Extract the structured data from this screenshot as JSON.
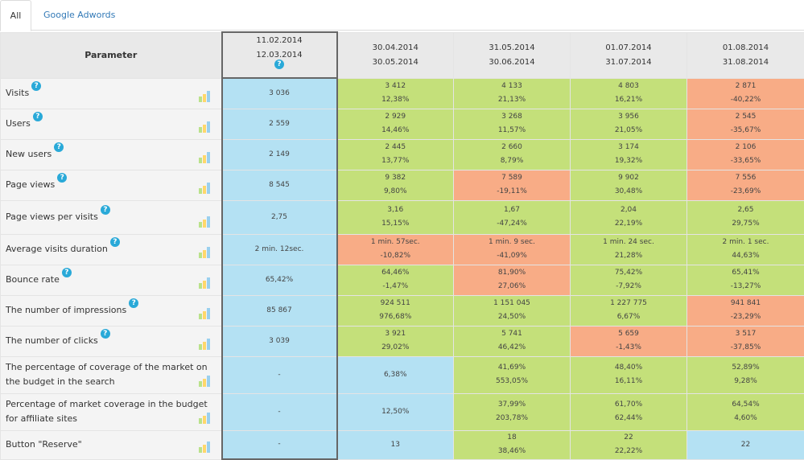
{
  "tabs": [
    "All",
    "Google Adwords"
  ],
  "header": {
    "parameter": "Parameter",
    "base": [
      "11.02.2014",
      "12.03.2014"
    ],
    "periods": [
      [
        "30.04.2014",
        "30.05.2014"
      ],
      [
        "31.05.2014",
        "30.06.2014"
      ],
      [
        "01.07.2014",
        "31.07.2014"
      ],
      [
        "01.08.2014",
        "31.08.2014"
      ]
    ],
    "help": "?"
  },
  "rows": [
    {
      "label": "Visits",
      "base": "3 036",
      "cells": [
        [
          "3 412",
          "12,38%",
          "g"
        ],
        [
          "4 133",
          "21,13%",
          "g"
        ],
        [
          "4 803",
          "16,21%",
          "g"
        ],
        [
          "2 871",
          "-40,22%",
          "r"
        ]
      ]
    },
    {
      "label": "Users",
      "base": "2 559",
      "cells": [
        [
          "2 929",
          "14,46%",
          "g"
        ],
        [
          "3 268",
          "11,57%",
          "g"
        ],
        [
          "3 956",
          "21,05%",
          "g"
        ],
        [
          "2 545",
          "-35,67%",
          "r"
        ]
      ]
    },
    {
      "label": "New users",
      "base": "2 149",
      "cells": [
        [
          "2 445",
          "13,77%",
          "g"
        ],
        [
          "2 660",
          "8,79%",
          "g"
        ],
        [
          "3 174",
          "19,32%",
          "g"
        ],
        [
          "2 106",
          "-33,65%",
          "r"
        ]
      ]
    },
    {
      "label": "Page views",
      "base": "8 545",
      "cells": [
        [
          "9 382",
          "9,80%",
          "g"
        ],
        [
          "7 589",
          "-19,11%",
          "r"
        ],
        [
          "9 902",
          "30,48%",
          "g"
        ],
        [
          "7 556",
          "-23,69%",
          "r"
        ]
      ]
    },
    {
      "label": "Page views per visits",
      "base": "2,75",
      "cells": [
        [
          "3,16",
          "15,15%",
          "g"
        ],
        [
          "1,67",
          "-47,24%",
          "g"
        ],
        [
          "2,04",
          "22,19%",
          "g"
        ],
        [
          "2,65",
          "29,75%",
          "g"
        ]
      ]
    },
    {
      "label": "Average visits duration",
      "base": "2 min. 12sec.",
      "cells": [
        [
          "1 min. 57sec.",
          "-10,82%",
          "r"
        ],
        [
          "1 min. 9 sec.",
          "-41,09%",
          "r"
        ],
        [
          "1 min. 24 sec.",
          "21,28%",
          "g"
        ],
        [
          "2 min. 1 sec.",
          "44,63%",
          "g"
        ]
      ]
    },
    {
      "label": "Bounce rate",
      "base": "65,42%",
      "cells": [
        [
          "64,46%",
          "-1,47%",
          "g"
        ],
        [
          "81,90%",
          "27,06%",
          "r"
        ],
        [
          "75,42%",
          "-7,92%",
          "g"
        ],
        [
          "65,41%",
          "-13,27%",
          "g"
        ]
      ]
    },
    {
      "label": "The number of impressions",
      "base": "85 867",
      "cells": [
        [
          "924 511",
          "976,68%",
          "g"
        ],
        [
          "1 151 045",
          "24,50%",
          "g"
        ],
        [
          "1 227 775",
          "6,67%",
          "g"
        ],
        [
          "941 841",
          "-23,29%",
          "r"
        ]
      ]
    },
    {
      "label": "The number of clicks",
      "base": "3 039",
      "cells": [
        [
          "3 921",
          "29,02%",
          "g"
        ],
        [
          "5 741",
          "46,42%",
          "g"
        ],
        [
          "5 659",
          "-1,43%",
          "r"
        ],
        [
          "3 517",
          "-37,85%",
          "r"
        ]
      ]
    },
    {
      "label": "The percentage of coverage of the market on the budget in the search",
      "base": "-",
      "cells": [
        [
          "6,38%",
          "",
          "b"
        ],
        [
          "41,69%",
          "553,05%",
          "g"
        ],
        [
          "48,40%",
          "16,11%",
          "g"
        ],
        [
          "52,89%",
          "9,28%",
          "g"
        ]
      ]
    },
    {
      "label": "Percentage of market coverage in the budget for affiliate sites",
      "base": "-",
      "cells": [
        [
          "12,50%",
          "",
          "b"
        ],
        [
          "37,99%",
          "203,78%",
          "g"
        ],
        [
          "61,70%",
          "62,44%",
          "g"
        ],
        [
          "64,54%",
          "4,60%",
          "g"
        ]
      ]
    },
    {
      "label": "Button \"Reserve\"",
      "base": "-",
      "cells": [
        [
          "13",
          "",
          "b"
        ],
        [
          "18",
          "38,46%",
          "g"
        ],
        [
          "22",
          "22,22%",
          "g"
        ],
        [
          "22",
          "",
          "b"
        ]
      ]
    }
  ],
  "row_meta": [
    {
      "help": true
    },
    {
      "help": true
    },
    {
      "help": true
    },
    {
      "help": true
    },
    {
      "help": true
    },
    {
      "help": true
    },
    {
      "help": true
    },
    {
      "help": true
    },
    {
      "help": true
    },
    {
      "help": false
    },
    {
      "help": false
    },
    {
      "help": false
    }
  ]
}
